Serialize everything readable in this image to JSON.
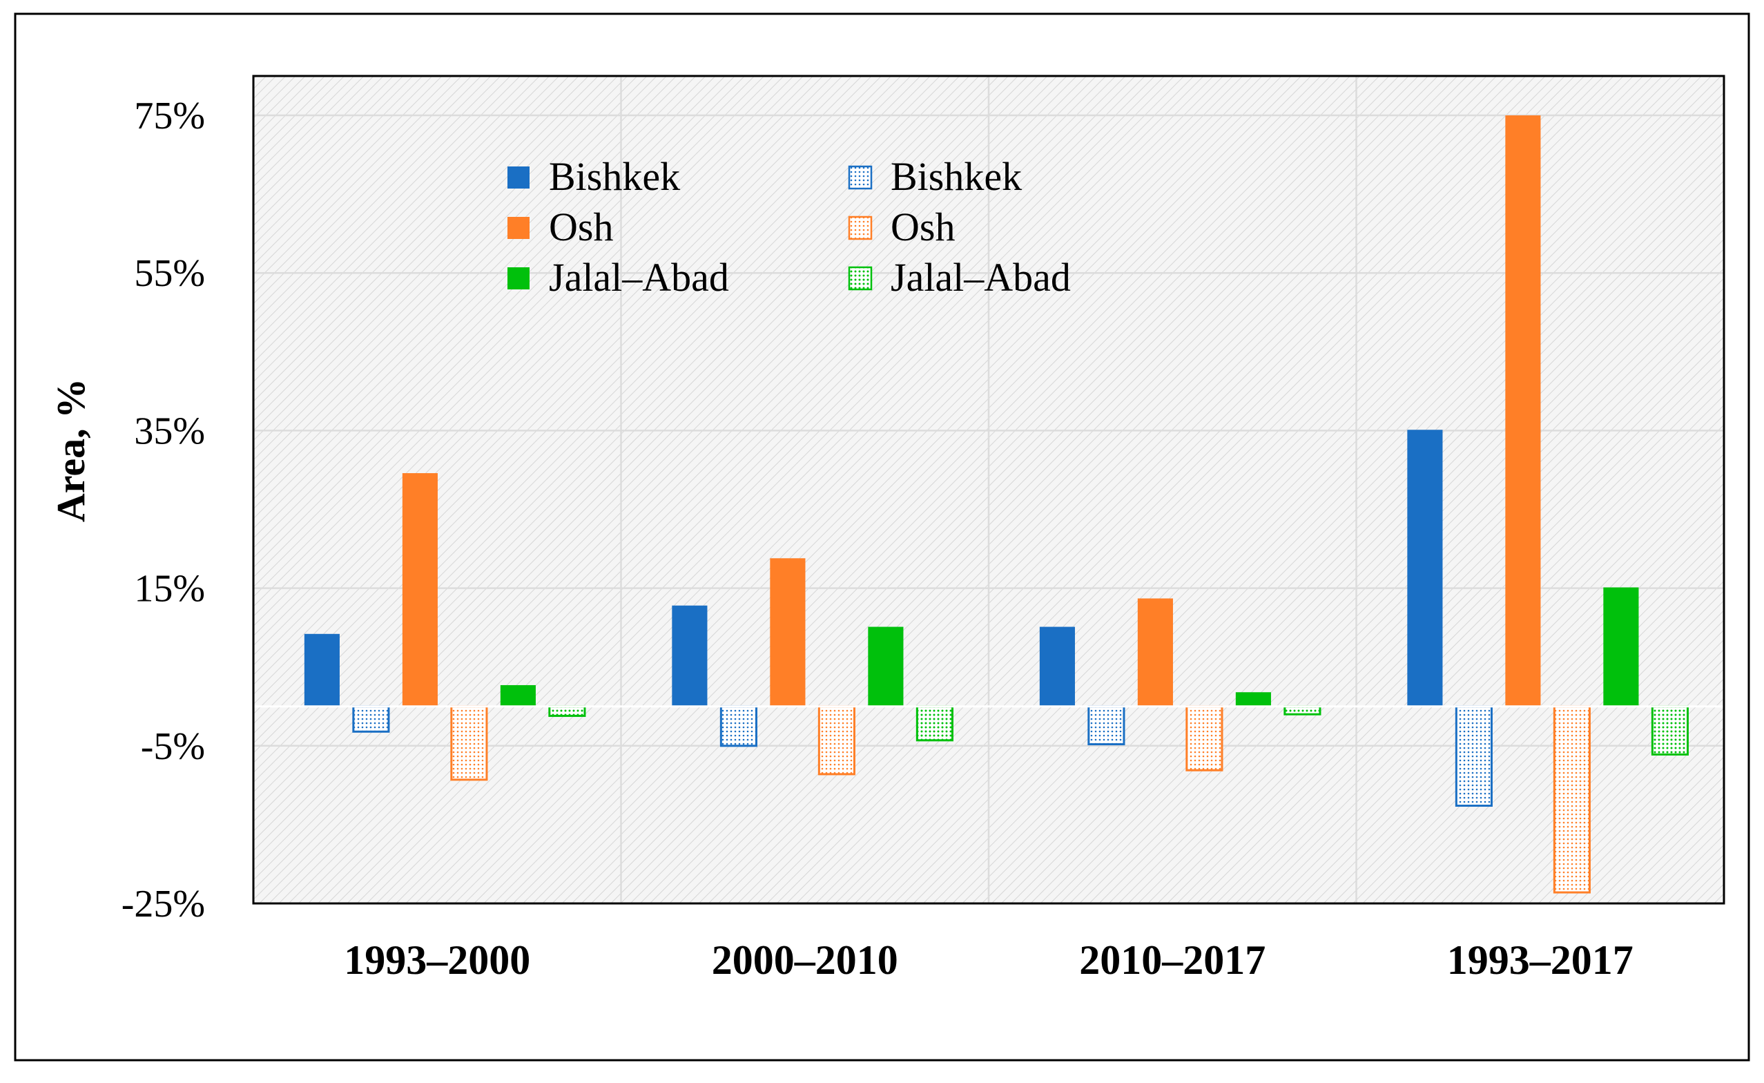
{
  "chart_data": {
    "type": "bar",
    "xlabel": "",
    "ylabel": "Area, %",
    "ylim": [
      -25,
      80
    ],
    "yticks": [
      "75%",
      "55%",
      "35%",
      "15%",
      "-5%",
      "-25%"
    ],
    "ytick_values": [
      75,
      55,
      35,
      15,
      -5,
      -25
    ],
    "categories": [
      "1993–2000",
      "2000–2010",
      "2010–2017",
      "1993–2017"
    ],
    "grid": true,
    "legend_position": "top-left",
    "series": [
      {
        "name": "Bishkek",
        "style": "solid",
        "color": "#1a6fc4",
        "values": [
          9.2,
          12.8,
          10.1,
          35.1
        ]
      },
      {
        "name": "Bishkek",
        "style": "hatched",
        "color": "#1a6fc4",
        "values": [
          -3.2,
          -5.0,
          -4.8,
          -12.6
        ]
      },
      {
        "name": "Osh",
        "style": "solid",
        "color": "#ff7f27",
        "values": [
          29.6,
          18.8,
          13.7,
          75.0
        ]
      },
      {
        "name": "Osh",
        "style": "hatched",
        "color": "#ff7f27",
        "values": [
          -9.3,
          -8.6,
          -8.1,
          -23.6
        ]
      },
      {
        "name": "Jalal–Abad",
        "style": "solid",
        "color": "#00c00c",
        "values": [
          2.7,
          10.1,
          1.8,
          15.1
        ]
      },
      {
        "name": "Jalal–Abad",
        "style": "hatched",
        "color": "#00c00c",
        "values": [
          -1.2,
          -4.3,
          -1.0,
          -6.1
        ]
      }
    ]
  }
}
